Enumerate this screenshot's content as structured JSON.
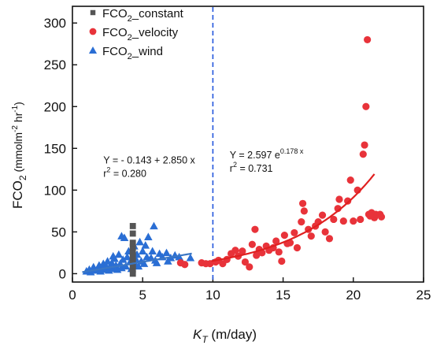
{
  "chart_data": {
    "type": "scatter",
    "xlabel": {
      "main": "K",
      "sub": "T",
      "rest": " (m/day)"
    },
    "ylabel": {
      "main": "FCO",
      "sub": "2",
      "rest": " (mmolm",
      "exp1": "-2",
      "mid": " hr",
      "exp2": "-1",
      "end": ")"
    },
    "xlim": [
      0,
      25
    ],
    "ylim": [
      -10,
      320
    ],
    "xticks": [
      0,
      5,
      10,
      15,
      20,
      25
    ],
    "yticks": [
      0,
      50,
      100,
      150,
      200,
      250,
      300
    ],
    "grid": false,
    "legend_position": "top-left",
    "vline": {
      "x": 10,
      "style": "dashed",
      "color": "#2255dd"
    },
    "series": [
      {
        "name": "FCO2_constant",
        "legend": {
          "main": "FCO",
          "sub": "2",
          "rest": "_constant"
        },
        "marker": "square",
        "color": "#555555",
        "points": [
          [
            4.3,
            0
          ],
          [
            4.3,
            5
          ],
          [
            4.3,
            10
          ],
          [
            4.3,
            15
          ],
          [
            4.3,
            20
          ],
          [
            4.3,
            26
          ],
          [
            4.3,
            32
          ],
          [
            4.3,
            37
          ],
          [
            4.3,
            48
          ],
          [
            4.3,
            57
          ]
        ]
      },
      {
        "name": "FCO2_velocity",
        "legend": {
          "main": "FCO",
          "sub": "2",
          "rest": "_velocity"
        },
        "marker": "circle",
        "color": "#e8333a",
        "points": [
          [
            7.7,
            13
          ],
          [
            8.0,
            11
          ],
          [
            9.2,
            13
          ],
          [
            9.5,
            12
          ],
          [
            9.8,
            12
          ],
          [
            10.2,
            14
          ],
          [
            10.4,
            16
          ],
          [
            10.7,
            12
          ],
          [
            11.0,
            17
          ],
          [
            11.3,
            24
          ],
          [
            11.6,
            28
          ],
          [
            11.8,
            21
          ],
          [
            12.1,
            27
          ],
          [
            12.3,
            14
          ],
          [
            12.6,
            8
          ],
          [
            12.8,
            35
          ],
          [
            13.0,
            53
          ],
          [
            13.1,
            22
          ],
          [
            13.3,
            29
          ],
          [
            13.5,
            25
          ],
          [
            13.8,
            33
          ],
          [
            14.0,
            28
          ],
          [
            14.3,
            31
          ],
          [
            14.5,
            39
          ],
          [
            14.7,
            26
          ],
          [
            14.9,
            15
          ],
          [
            15.1,
            46
          ],
          [
            15.3,
            36
          ],
          [
            15.5,
            37
          ],
          [
            15.8,
            49
          ],
          [
            16.0,
            31
          ],
          [
            16.3,
            62
          ],
          [
            16.4,
            84
          ],
          [
            16.5,
            75
          ],
          [
            16.8,
            53
          ],
          [
            17.0,
            45
          ],
          [
            17.3,
            57
          ],
          [
            17.5,
            62
          ],
          [
            17.8,
            70
          ],
          [
            18.0,
            50
          ],
          [
            18.3,
            42
          ],
          [
            18.6,
            65
          ],
          [
            18.9,
            78
          ],
          [
            19.0,
            89
          ],
          [
            19.3,
            63
          ],
          [
            19.6,
            87
          ],
          [
            19.8,
            112
          ],
          [
            20.0,
            63
          ],
          [
            20.3,
            100
          ],
          [
            20.5,
            65
          ],
          [
            20.7,
            143
          ],
          [
            20.8,
            154
          ],
          [
            20.9,
            200
          ],
          [
            21.0,
            280
          ],
          [
            21.1,
            71
          ],
          [
            21.3,
            73
          ],
          [
            21.5,
            67
          ],
          [
            21.6,
            71
          ],
          [
            21.9,
            71
          ],
          [
            22.0,
            68
          ],
          [
            21.2,
            69
          ]
        ]
      },
      {
        "name": "FCO2_wind",
        "legend": {
          "main": "FCO",
          "sub": "2",
          "rest": "_wind"
        },
        "marker": "triangle",
        "color": "#2a6ed4",
        "points": [
          [
            1.0,
            3
          ],
          [
            1.2,
            5
          ],
          [
            1.3,
            2
          ],
          [
            1.5,
            8
          ],
          [
            1.6,
            4
          ],
          [
            1.8,
            6
          ],
          [
            1.9,
            10
          ],
          [
            2.0,
            3
          ],
          [
            2.1,
            7
          ],
          [
            2.2,
            12
          ],
          [
            2.3,
            5
          ],
          [
            2.4,
            9
          ],
          [
            2.5,
            15
          ],
          [
            2.6,
            4
          ],
          [
            2.7,
            8
          ],
          [
            2.8,
            13
          ],
          [
            2.9,
            6
          ],
          [
            3.0,
            18
          ],
          [
            3.1,
            10
          ],
          [
            3.2,
            5
          ],
          [
            3.3,
            23
          ],
          [
            3.4,
            12
          ],
          [
            3.5,
            7
          ],
          [
            3.6,
            17
          ],
          [
            3.7,
            43
          ],
          [
            3.8,
            9
          ],
          [
            3.9,
            20
          ],
          [
            4.0,
            27
          ],
          [
            4.1,
            14
          ],
          [
            4.2,
            6
          ],
          [
            4.4,
            33
          ],
          [
            4.5,
            18
          ],
          [
            4.6,
            23
          ],
          [
            4.7,
            9
          ],
          [
            4.8,
            38
          ],
          [
            4.9,
            15
          ],
          [
            5.0,
            27
          ],
          [
            5.1,
            12
          ],
          [
            5.2,
            34
          ],
          [
            5.3,
            20
          ],
          [
            5.4,
            44
          ],
          [
            5.6,
            19
          ],
          [
            5.7,
            27
          ],
          [
            5.8,
            57
          ],
          [
            5.9,
            16
          ],
          [
            6.0,
            13
          ],
          [
            6.2,
            24
          ],
          [
            6.4,
            20
          ],
          [
            6.7,
            25
          ],
          [
            6.8,
            15
          ],
          [
            7.0,
            19
          ],
          [
            7.3,
            22
          ],
          [
            7.6,
            20
          ],
          [
            7.8,
            14
          ],
          [
            8.4,
            19
          ],
          [
            3.5,
            45
          ],
          [
            2.9,
            21
          ],
          [
            4.5,
            10
          ]
        ]
      }
    ],
    "fits": [
      {
        "series": "FCO2_wind",
        "kind": "linear",
        "intercept": -0.143,
        "slope": 2.85,
        "x_range": [
          0.7,
          8.5
        ],
        "color": "#3a76c4"
      },
      {
        "series": "FCO2_velocity",
        "kind": "exponential",
        "a": 2.597,
        "b": 0.178,
        "x_range": [
          9.9,
          21.5
        ],
        "color": "#e02020"
      }
    ],
    "annotations": [
      {
        "id": "wind_eq",
        "lines": [
          {
            "parts": [
              "Y = - 0.143 + 2.850 x"
            ]
          },
          {
            "parts": [
              "r",
              "2",
              " = 0.280"
            ]
          }
        ],
        "at": [
          2.2,
          132
        ]
      },
      {
        "id": "velocity_eq",
        "lines": [
          {
            "parts": [
              "Y = 2.597 e",
              "0.178 x"
            ]
          },
          {
            "parts": [
              "r",
              "2",
              " = 0.731"
            ]
          }
        ],
        "at": [
          11.2,
          138
        ]
      }
    ]
  }
}
